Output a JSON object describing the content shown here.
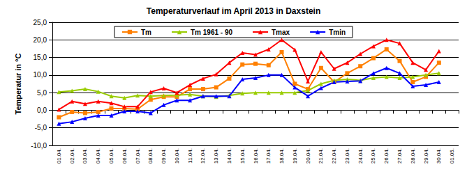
{
  "chart_data": {
    "type": "line",
    "title": "Temperaturverlauf im April 2013 in Daxstein",
    "y_label": "Temperatur in °C",
    "categories": [
      "01.04.",
      "02.04.",
      "03.04.",
      "04.04.",
      "05.04.",
      "06.04.",
      "07.04.",
      "08.04.",
      "09.04.",
      "10.04.",
      "11.04.",
      "12.04.",
      "13.04.",
      "14.04.",
      "15.04.",
      "16.04.",
      "17.04.",
      "18.04.",
      "19.04.",
      "20.04.",
      "21.04.",
      "22.04.",
      "23.04.",
      "24.04.",
      "25.04.",
      "26.04.",
      "27.04.",
      "28.04.",
      "29.04.",
      "30.04.",
      "01.05."
    ],
    "series": [
      {
        "name": "Tm",
        "color": "#ff8000",
        "marker": "square",
        "values": [
          -2.0,
          -0.5,
          -0.8,
          -0.5,
          0.5,
          0.5,
          0.3,
          3.0,
          3.8,
          3.8,
          6.0,
          6.0,
          6.5,
          9.0,
          13.0,
          13.2,
          12.8,
          16.5,
          7.5,
          6.0,
          12.0,
          8.0,
          10.5,
          12.5,
          14.8,
          17.3,
          14.0,
          8.0,
          9.5,
          13.5,
          null
        ]
      },
      {
        "name": "Tm 1961 - 90",
        "color": "#99cc00",
        "marker": "triangle",
        "values": [
          5.2,
          5.5,
          6.0,
          5.3,
          4.0,
          3.5,
          4.2,
          4.0,
          4.2,
          4.3,
          4.5,
          4.0,
          3.8,
          4.2,
          4.8,
          5.0,
          5.0,
          5.0,
          5.0,
          5.6,
          7.5,
          8.5,
          8.8,
          8.5,
          9.2,
          9.5,
          9.2,
          9.5,
          10.0,
          10.5,
          null
        ]
      },
      {
        "name": "Tmax",
        "color": "#ff0000",
        "marker": "triangle",
        "values": [
          0.2,
          2.5,
          1.8,
          2.5,
          2.0,
          1.0,
          1.0,
          5.2,
          6.2,
          5.0,
          7.2,
          9.0,
          10.2,
          13.5,
          16.3,
          15.8,
          17.3,
          20.0,
          17.2,
          8.2,
          16.5,
          11.8,
          13.5,
          16.0,
          18.2,
          20.0,
          19.0,
          13.5,
          11.5,
          16.8,
          null
        ]
      },
      {
        "name": "Tmin",
        "color": "#0000ff",
        "marker": "triangle",
        "values": [
          -3.8,
          -3.3,
          -2.3,
          -1.5,
          -1.5,
          -0.3,
          -0.3,
          -0.8,
          1.5,
          2.8,
          2.8,
          4.0,
          4.0,
          4.0,
          8.8,
          9.2,
          10.0,
          10.0,
          6.5,
          4.0,
          6.3,
          8.0,
          8.2,
          8.3,
          10.5,
          12.0,
          10.5,
          6.8,
          7.2,
          8.0,
          null
        ]
      }
    ],
    "ylim": [
      -10,
      25
    ],
    "yticks": [
      {
        "value": -10,
        "label": "-10,0"
      },
      {
        "value": -5,
        "label": "-5,0"
      },
      {
        "value": 0,
        "label": "0,0"
      },
      {
        "value": 5,
        "label": "5,0"
      },
      {
        "value": 10,
        "label": "10,0"
      },
      {
        "value": 15,
        "label": "15,0"
      },
      {
        "value": 20,
        "label": "20,0"
      },
      {
        "value": 25,
        "label": "25,0"
      }
    ],
    "grid": true,
    "legend": "top"
  }
}
